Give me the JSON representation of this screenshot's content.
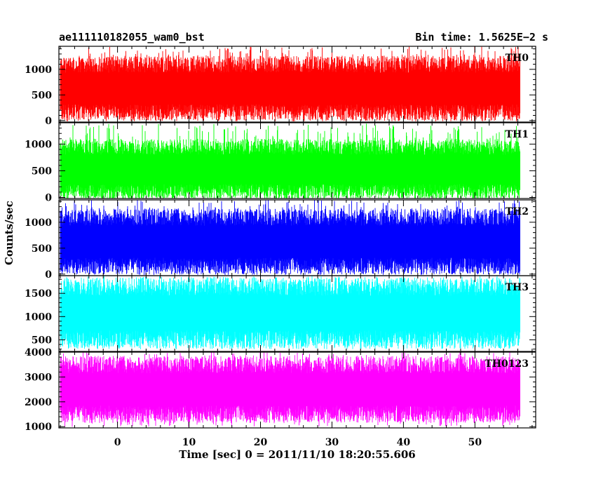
{
  "header": {
    "title": "ae111110182055_wam0_bst",
    "bin_time": "Bin time: 1.5625E−2 s"
  },
  "chart_data": {
    "type": "line",
    "render": "stacked-panels-step",
    "xlabel": "Time [sec] 0 = 2011/11/10 18:20:55.606",
    "ylabel": "Counts/sec",
    "xlim": [
      -8.2,
      58.5
    ],
    "data_x_range": [
      -8.0,
      56.2
    ],
    "bin_time": 0.015625,
    "x_ticks": [
      0,
      10,
      20,
      30,
      40,
      50
    ],
    "grid": false,
    "panels": [
      {
        "name": "TH0",
        "color": "#ff0000",
        "ylim": [
          -30,
          1450
        ],
        "y_ticks": [
          0,
          500,
          1000
        ],
        "typical_range": [
          150,
          1100
        ],
        "spike_range": [
          0,
          1450
        ]
      },
      {
        "name": "TH1",
        "color": "#00ff00",
        "ylim": [
          -20,
          1400
        ],
        "y_ticks": [
          0,
          500,
          1000
        ],
        "typical_range": [
          100,
          950
        ],
        "spike_range": [
          0,
          1390
        ]
      },
      {
        "name": "TH2",
        "color": "#0000ff",
        "ylim": [
          -30,
          1430
        ],
        "y_ticks": [
          0,
          500,
          1000
        ],
        "typical_range": [
          150,
          1100
        ],
        "spike_range": [
          0,
          1430
        ]
      },
      {
        "name": "TH3",
        "color": "#00ffff",
        "ylim": [
          250,
          1880
        ],
        "y_ticks": [
          500,
          1000,
          1500
        ],
        "typical_range": [
          500,
          1650
        ],
        "spike_range": [
          300,
          1880
        ]
      },
      {
        "name": "TH0123",
        "color": "#ff00ff",
        "ylim": [
          950,
          4000
        ],
        "y_ticks": [
          1000,
          2000,
          3000,
          4000
        ],
        "typical_range": [
          1500,
          3500
        ],
        "spike_range": [
          1000,
          4000
        ]
      }
    ]
  }
}
